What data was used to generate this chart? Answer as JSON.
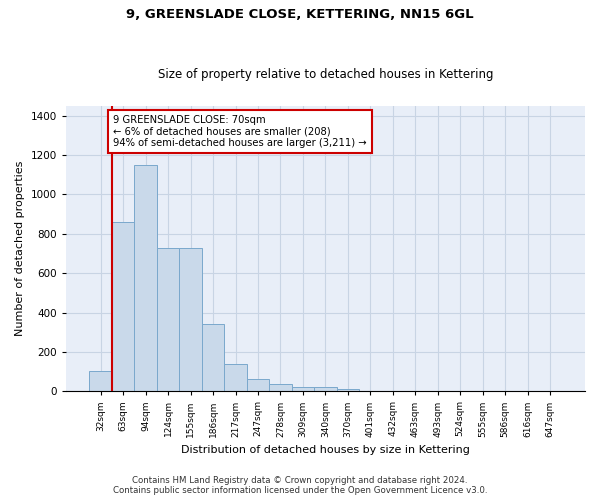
{
  "title": "9, GREENSLADE CLOSE, KETTERING, NN15 6GL",
  "subtitle": "Size of property relative to detached houses in Kettering",
  "xlabel": "Distribution of detached houses by size in Kettering",
  "ylabel": "Number of detached properties",
  "categories": [
    "32sqm",
    "63sqm",
    "94sqm",
    "124sqm",
    "155sqm",
    "186sqm",
    "217sqm",
    "247sqm",
    "278sqm",
    "309sqm",
    "340sqm",
    "370sqm",
    "401sqm",
    "432sqm",
    "463sqm",
    "493sqm",
    "524sqm",
    "555sqm",
    "586sqm",
    "616sqm",
    "647sqm"
  ],
  "values": [
    103,
    860,
    1148,
    730,
    730,
    340,
    140,
    62,
    35,
    20,
    20,
    10,
    0,
    0,
    0,
    0,
    0,
    0,
    0,
    0,
    0
  ],
  "bar_color": "#c9d9ea",
  "bar_edge_color": "#7aa8cc",
  "grid_color": "#c8d4e4",
  "background_color": "#e8eef8",
  "vline_color": "#cc0000",
  "annotation_text": "9 GREENSLADE CLOSE: 70sqm\n← 6% of detached houses are smaller (208)\n94% of semi-detached houses are larger (3,211) →",
  "annotation_box_color": "white",
  "annotation_box_edge_color": "#cc0000",
  "ylim": [
    0,
    1450
  ],
  "yticks": [
    0,
    200,
    400,
    600,
    800,
    1000,
    1200,
    1400
  ],
  "footer_line1": "Contains HM Land Registry data © Crown copyright and database right 2024.",
  "footer_line2": "Contains public sector information licensed under the Open Government Licence v3.0."
}
